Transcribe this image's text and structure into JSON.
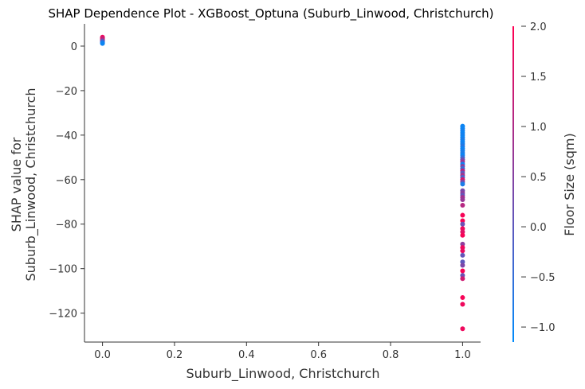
{
  "chart_data": {
    "type": "scatter",
    "title": "SHAP Dependence Plot - XGBoost_Optuna (Suburb_Linwood, Christchurch)",
    "xlabel": "Suburb_Linwood, Christchurch",
    "ylabel_lines": [
      "SHAP value for",
      "Suburb_Linwood, Christchurch"
    ],
    "xlim": [
      -0.05,
      1.05
    ],
    "ylim": [
      -133,
      10
    ],
    "xticks": [
      0.0,
      0.2,
      0.4,
      0.6,
      0.8,
      1.0
    ],
    "xtick_labels": [
      "0.0",
      "0.2",
      "0.4",
      "0.6",
      "0.8",
      "1.0"
    ],
    "yticks": [
      0,
      -20,
      -40,
      -60,
      -80,
      -100,
      -120
    ],
    "ytick_labels": [
      "0",
      "−20",
      "−40",
      "−60",
      "−80",
      "−100",
      "−120"
    ],
    "colorbar": {
      "label": "Floor Size (sqm)",
      "range": [
        -1.15,
        2.0
      ],
      "ticks": [
        2.0,
        1.5,
        1.0,
        0.5,
        0.0,
        -0.5,
        -1.0
      ],
      "tick_labels": [
        "2.0",
        "1.5",
        "1.0",
        "0.5",
        "0.0",
        "−0.5",
        "−1.0"
      ],
      "colors": [
        "#008bfb",
        "#ff0052"
      ]
    },
    "points": [
      {
        "x": 0,
        "y": 4.0,
        "c": 1.8
      },
      {
        "x": 0,
        "y": 3.6,
        "c": 1.6
      },
      {
        "x": 0,
        "y": 3.2,
        "c": 1.4
      },
      {
        "x": 0,
        "y": 2.8,
        "c": 1.2
      },
      {
        "x": 0,
        "y": 2.4,
        "c": 0.6
      },
      {
        "x": 0,
        "y": 2.0,
        "c": -0.2
      },
      {
        "x": 0,
        "y": 1.6,
        "c": -0.6
      },
      {
        "x": 0,
        "y": 1.2,
        "c": -1.0
      },
      {
        "x": 1,
        "y": -36,
        "c": -1.0
      },
      {
        "x": 1,
        "y": -37,
        "c": -1.0
      },
      {
        "x": 1,
        "y": -38,
        "c": -0.9
      },
      {
        "x": 1,
        "y": -39,
        "c": -1.0
      },
      {
        "x": 1,
        "y": -40,
        "c": -0.9
      },
      {
        "x": 1,
        "y": -41,
        "c": -1.0
      },
      {
        "x": 1,
        "y": -42,
        "c": -0.8
      },
      {
        "x": 1,
        "y": -43,
        "c": -1.0
      },
      {
        "x": 1,
        "y": -44,
        "c": -0.9
      },
      {
        "x": 1,
        "y": -45,
        "c": -0.7
      },
      {
        "x": 1,
        "y": -46,
        "c": -1.0
      },
      {
        "x": 1,
        "y": -47,
        "c": -0.9
      },
      {
        "x": 1,
        "y": -48,
        "c": -0.8
      },
      {
        "x": 1,
        "y": -49,
        "c": -1.0
      },
      {
        "x": 1,
        "y": -50,
        "c": -0.6
      },
      {
        "x": 1,
        "y": -51,
        "c": 0.2
      },
      {
        "x": 1,
        "y": -52,
        "c": 0.8
      },
      {
        "x": 1,
        "y": -53,
        "c": -0.9
      },
      {
        "x": 1,
        "y": -54,
        "c": 0.5
      },
      {
        "x": 1,
        "y": -55,
        "c": -0.5
      },
      {
        "x": 1,
        "y": -56,
        "c": 1.2
      },
      {
        "x": 1,
        "y": -57,
        "c": 0.0
      },
      {
        "x": 1,
        "y": -58,
        "c": 0.9
      },
      {
        "x": 1,
        "y": -59,
        "c": -0.3
      },
      {
        "x": 1,
        "y": -60,
        "c": 1.5
      },
      {
        "x": 1,
        "y": -61,
        "c": 0.4
      },
      {
        "x": 1,
        "y": -62,
        "c": -0.8
      },
      {
        "x": 1,
        "y": -65,
        "c": 0.3
      },
      {
        "x": 1,
        "y": -66,
        "c": 0.6
      },
      {
        "x": 1,
        "y": -67,
        "c": 0.1
      },
      {
        "x": 1,
        "y": -68,
        "c": 0.9
      },
      {
        "x": 1,
        "y": -69,
        "c": 0.7
      },
      {
        "x": 1,
        "y": -71.5,
        "c": 1.1
      },
      {
        "x": 1,
        "y": -76,
        "c": 1.9
      },
      {
        "x": 1,
        "y": -78.5,
        "c": 1.9
      },
      {
        "x": 1,
        "y": -80,
        "c": 0.2
      },
      {
        "x": 1,
        "y": -82,
        "c": 1.8
      },
      {
        "x": 1,
        "y": -83.5,
        "c": 1.6
      },
      {
        "x": 1,
        "y": -85,
        "c": 1.9
      },
      {
        "x": 1,
        "y": -89,
        "c": 0.6
      },
      {
        "x": 1,
        "y": -90.5,
        "c": 1.8
      },
      {
        "x": 1,
        "y": -92,
        "c": 1.7
      },
      {
        "x": 1,
        "y": -94,
        "c": 0.1
      },
      {
        "x": 1,
        "y": -97,
        "c": 0.0
      },
      {
        "x": 1,
        "y": -98.5,
        "c": 0.4
      },
      {
        "x": 1,
        "y": -101,
        "c": 1.9
      },
      {
        "x": 1,
        "y": -103,
        "c": 0.2
      },
      {
        "x": 1,
        "y": -104.5,
        "c": 1.4
      },
      {
        "x": 1,
        "y": -113,
        "c": 1.9
      },
      {
        "x": 1,
        "y": -116,
        "c": 1.8
      },
      {
        "x": 1,
        "y": -127,
        "c": 1.8
      }
    ]
  }
}
